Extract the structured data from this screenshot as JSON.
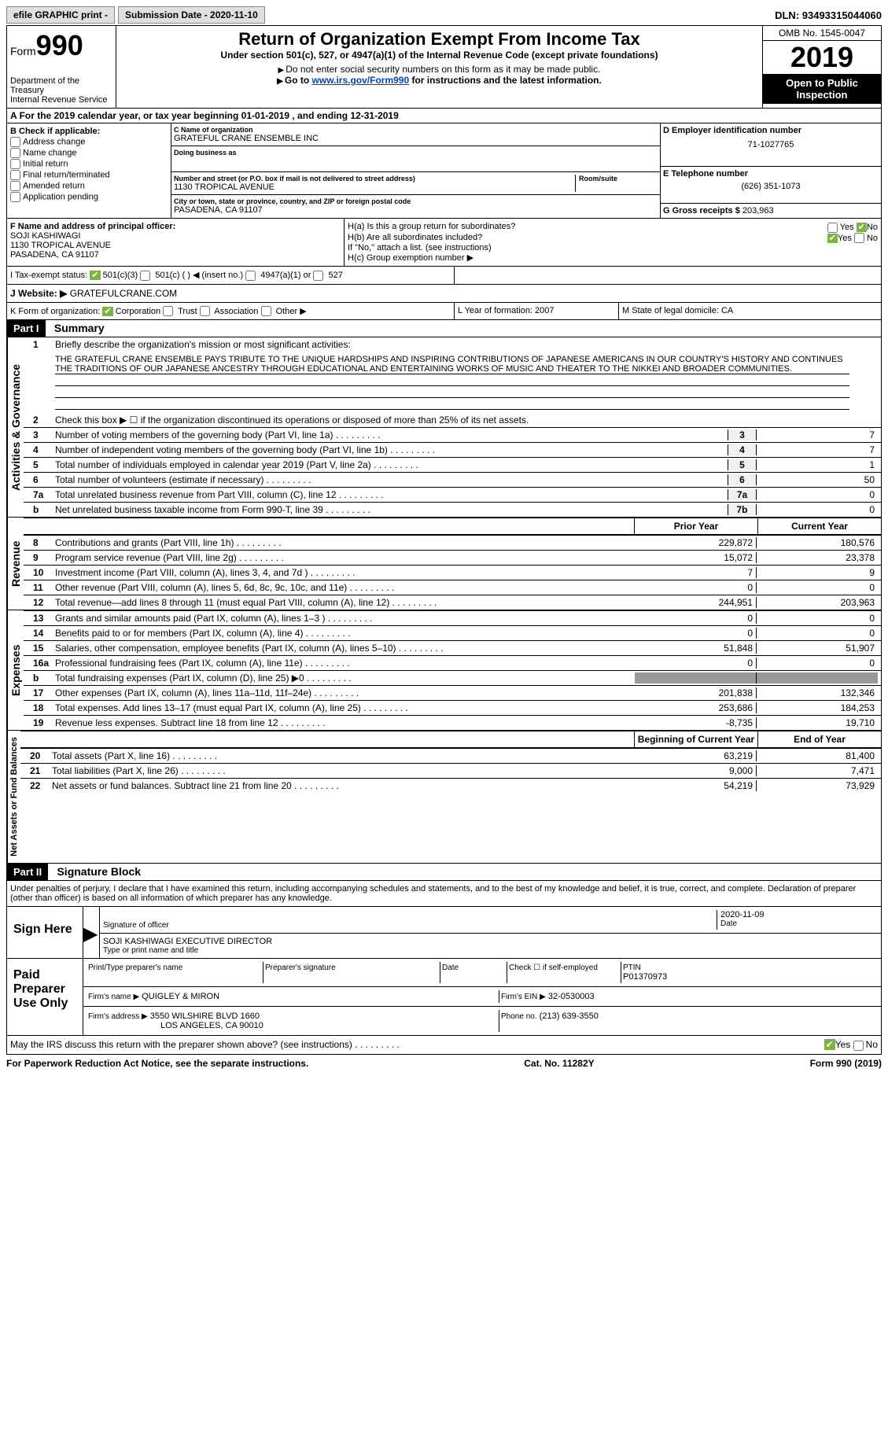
{
  "topbar": {
    "efile": "efile GRAPHIC print -",
    "submission": "Submission Date - 2020-11-10",
    "dln_label": "DLN:",
    "dln": "93493315044060"
  },
  "header": {
    "form_prefix": "Form",
    "form_number": "990",
    "dept1": "Department of the Treasury",
    "dept2": "Internal Revenue Service",
    "title": "Return of Organization Exempt From Income Tax",
    "subtitle": "Under section 501(c), 527, or 4947(a)(1) of the Internal Revenue Code (except private foundations)",
    "note1": "Do not enter social security numbers on this form as it may be made public.",
    "note2_prefix": "Go to ",
    "note2_link": "www.irs.gov/Form990",
    "note2_suffix": " for instructions and the latest information.",
    "omb": "OMB No. 1545-0047",
    "year": "2019",
    "inspect1": "Open to Public",
    "inspect2": "Inspection"
  },
  "period": {
    "text": "For the 2019 calendar year, or tax year beginning 01-01-2019   , and ending 12-31-2019"
  },
  "checkboxes": {
    "heading": "B Check if applicable:",
    "opts": [
      "Address change",
      "Name change",
      "Initial return",
      "Final return/terminated",
      "Amended return",
      "Application pending"
    ]
  },
  "org": {
    "name_lbl": "C Name of organization",
    "name": "GRATEFUL CRANE ENSEMBLE INC",
    "dba_lbl": "Doing business as",
    "dba": "",
    "addr_lbl": "Number and street (or P.O. box if mail is not delivered to street address)",
    "room_lbl": "Room/suite",
    "addr": "1130 TROPICAL AVENUE",
    "city_lbl": "City or town, state or province, country, and ZIP or foreign postal code",
    "city": "PASADENA, CA  91107",
    "ein_lbl": "D Employer identification number",
    "ein": "71-1027765",
    "phone_lbl": "E Telephone number",
    "phone": "(626) 351-1073",
    "gross_lbl": "G Gross receipts $",
    "gross": "203,963"
  },
  "officer": {
    "lbl": "F  Name and address of principal officer:",
    "name": "SOJI KASHIWAGI",
    "addr": "1130 TROPICAL AVENUE",
    "city": "PASADENA, CA  91107"
  },
  "group": {
    "ha": "H(a)  Is this a group return for subordinates?",
    "hb": "H(b)  Are all subordinates included?",
    "hb_note": "If \"No,\" attach a list. (see instructions)",
    "hc": "H(c)  Group exemption number ▶",
    "yes": "Yes",
    "no": "No"
  },
  "status": {
    "i": "I  Tax-exempt status:",
    "c3": "501(c)(3)",
    "c": "501(c) ( ) ◀ (insert no.)",
    "a1": "4947(a)(1) or",
    "s527": "527",
    "j": "J  Website: ▶",
    "website": "GRATEFULCRANE.COM",
    "k": "K Form of organization:",
    "corp": "Corporation",
    "trust": "Trust",
    "assoc": "Association",
    "other": "Other ▶",
    "l": "L Year of formation: 2007",
    "m": "M State of legal domicile: CA"
  },
  "part1": {
    "label": "Part I",
    "title": "Summary",
    "line1": "Briefly describe the organization's mission or most significant activities:",
    "mission": "THE GRATEFUL CRANE ENSEMBLE PAYS TRIBUTE TO THE UNIQUE HARDSHIPS AND INSPIRING CONTRIBUTIONS OF JAPANESE AMERICANS IN OUR COUNTRY'S HISTORY AND CONTINUES THE TRADITIONS OF OUR JAPANESE ANCESTRY THROUGH EDUCATIONAL AND ENTERTAINING WORKS OF MUSIC AND THEATER TO THE NIKKEI AND BROADER COMMUNITIES.",
    "line2": "Check this box ▶ ☐  if the organization discontinued its operations or disposed of more than 25% of its net assets.",
    "governance": "Activities & Governance",
    "revenue": "Revenue",
    "expenses": "Expenses",
    "netassets": "Net Assets or Fund Balances"
  },
  "govlines": [
    {
      "n": "3",
      "t": "Number of voting members of the governing body (Part VI, line 1a)",
      "ref": "3",
      "v": "7"
    },
    {
      "n": "4",
      "t": "Number of independent voting members of the governing body (Part VI, line 1b)",
      "ref": "4",
      "v": "7"
    },
    {
      "n": "5",
      "t": "Total number of individuals employed in calendar year 2019 (Part V, line 2a)",
      "ref": "5",
      "v": "1"
    },
    {
      "n": "6",
      "t": "Total number of volunteers (estimate if necessary)",
      "ref": "6",
      "v": "50"
    },
    {
      "n": "7a",
      "t": "Total unrelated business revenue from Part VIII, column (C), line 12",
      "ref": "7a",
      "v": "0"
    },
    {
      "n": "b",
      "t": "Net unrelated business taxable income from Form 990-T, line 39",
      "ref": "7b",
      "v": "0"
    }
  ],
  "cols": {
    "prior": "Prior Year",
    "current": "Current Year",
    "begin": "Beginning of Current Year",
    "end": "End of Year"
  },
  "revlines": [
    {
      "n": "8",
      "t": "Contributions and grants (Part VIII, line 1h)",
      "p": "229,872",
      "c": "180,576"
    },
    {
      "n": "9",
      "t": "Program service revenue (Part VIII, line 2g)",
      "p": "15,072",
      "c": "23,378"
    },
    {
      "n": "10",
      "t": "Investment income (Part VIII, column (A), lines 3, 4, and 7d )",
      "p": "7",
      "c": "9"
    },
    {
      "n": "11",
      "t": "Other revenue (Part VIII, column (A), lines 5, 6d, 8c, 9c, 10c, and 11e)",
      "p": "0",
      "c": "0"
    },
    {
      "n": "12",
      "t": "Total revenue—add lines 8 through 11 (must equal Part VIII, column (A), line 12)",
      "p": "244,951",
      "c": "203,963"
    }
  ],
  "explines": [
    {
      "n": "13",
      "t": "Grants and similar amounts paid (Part IX, column (A), lines 1–3 )",
      "p": "0",
      "c": "0"
    },
    {
      "n": "14",
      "t": "Benefits paid to or for members (Part IX, column (A), line 4)",
      "p": "0",
      "c": "0"
    },
    {
      "n": "15",
      "t": "Salaries, other compensation, employee benefits (Part IX, column (A), lines 5–10)",
      "p": "51,848",
      "c": "51,907"
    },
    {
      "n": "16a",
      "t": "Professional fundraising fees (Part IX, column (A), line 11e)",
      "p": "0",
      "c": "0"
    },
    {
      "n": "b",
      "t": "Total fundraising expenses (Part IX, column (D), line 25) ▶0",
      "p": "",
      "c": "",
      "grey": true
    },
    {
      "n": "17",
      "t": "Other expenses (Part IX, column (A), lines 11a–11d, 11f–24e)",
      "p": "201,838",
      "c": "132,346"
    },
    {
      "n": "18",
      "t": "Total expenses. Add lines 13–17 (must equal Part IX, column (A), line 25)",
      "p": "253,686",
      "c": "184,253"
    },
    {
      "n": "19",
      "t": "Revenue less expenses. Subtract line 18 from line 12",
      "p": "-8,735",
      "c": "19,710"
    }
  ],
  "netlines": [
    {
      "n": "20",
      "t": "Total assets (Part X, line 16)",
      "p": "63,219",
      "c": "81,400"
    },
    {
      "n": "21",
      "t": "Total liabilities (Part X, line 26)",
      "p": "9,000",
      "c": "7,471"
    },
    {
      "n": "22",
      "t": "Net assets or fund balances. Subtract line 21 from line 20",
      "p": "54,219",
      "c": "73,929"
    }
  ],
  "part2": {
    "label": "Part II",
    "title": "Signature Block",
    "penalty": "Under penalties of perjury, I declare that I have examined this return, including accompanying schedules and statements, and to the best of my knowledge and belief, it is true, correct, and complete. Declaration of preparer (other than officer) is based on all information of which preparer has any knowledge."
  },
  "sign": {
    "here": "Sign Here",
    "sigoff": "Signature of officer",
    "date": "Date",
    "dateval": "2020-11-09",
    "name": "SOJI KASHIWAGI  EXECUTIVE DIRECTOR",
    "typelbl": "Type or print name and title",
    "paid": "Paid Preparer Use Only",
    "prep_name_lbl": "Print/Type preparer's name",
    "prep_sig_lbl": "Preparer's signature",
    "prep_date_lbl": "Date",
    "check_self": "Check ☐ if self-employed",
    "ptin_lbl": "PTIN",
    "ptin": "P01370973",
    "firm_name_lbl": "Firm's name    ▶",
    "firm_name": "QUIGLEY & MIRON",
    "firm_ein_lbl": "Firm's EIN ▶",
    "firm_ein": "32-0530003",
    "firm_addr_lbl": "Firm's address ▶",
    "firm_addr": "3550 WILSHIRE BLVD 1660",
    "firm_city": "LOS ANGELES, CA  90010",
    "firm_phone_lbl": "Phone no.",
    "firm_phone": "(213) 639-3550",
    "discuss": "May the IRS discuss this return with the preparer shown above? (see instructions)"
  },
  "footer": {
    "left": "For Paperwork Reduction Act Notice, see the separate instructions.",
    "center": "Cat. No. 11282Y",
    "right": "Form 990 (2019)"
  }
}
